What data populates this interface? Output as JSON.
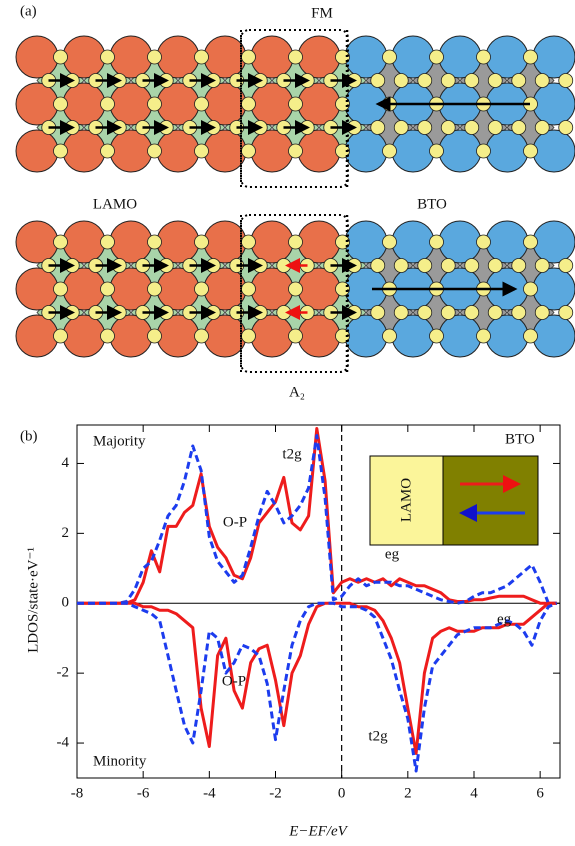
{
  "diagram": {
    "label": "(a)",
    "top_label": "FM",
    "left_label": "LAMO",
    "right_label": "BTO",
    "bottom_label": "A₂"
  },
  "chart_data": {
    "type": "line",
    "label": "(b)",
    "x_label": "E−EF/eV",
    "y_label": "LDOS/state·eV⁻¹",
    "annotations": [
      "Majority",
      "Minority",
      "t2g",
      "O-P",
      "eg",
      "BTO",
      "eg",
      "O-P",
      "t2g"
    ],
    "inset_label": "LAMO",
    "xlim": [
      -8,
      6.6
    ],
    "ylim": [
      -5,
      5.1
    ],
    "xticks": [
      -8,
      -6,
      -4,
      -2,
      0,
      2,
      4,
      6
    ],
    "yticks": [
      -4,
      -2,
      0,
      2,
      4
    ],
    "x": [
      -8,
      -7.75,
      -7.5,
      -7.25,
      -7,
      -6.75,
      -6.5,
      -6.25,
      -6,
      -5.75,
      -5.5,
      -5.25,
      -5,
      -4.75,
      -4.5,
      -4.25,
      -4,
      -3.75,
      -3.5,
      -3.25,
      -3,
      -2.75,
      -2.5,
      -2.25,
      -2,
      -1.75,
      -1.5,
      -1.25,
      -1,
      -0.75,
      -0.5,
      -0.25,
      0,
      0.25,
      0.5,
      0.75,
      1,
      1.25,
      1.5,
      1.75,
      2,
      2.25,
      2.5,
      2.75,
      3,
      3.25,
      3.5,
      3.75,
      4,
      4.25,
      4.5,
      4.75,
      5,
      5.25,
      5.5,
      5.75,
      6,
      6.25,
      6.5
    ],
    "series": [
      {
        "color": "#ee1c1c",
        "dash": false,
        "values": [
          0,
          0,
          0,
          0,
          0,
          0,
          0,
          0.1,
          0.6,
          1.5,
          0.9,
          2.2,
          2.2,
          2.6,
          2.8,
          3.7,
          2.2,
          1.6,
          1.3,
          0.8,
          0.7,
          1.3,
          2.3,
          2.6,
          2.9,
          3.6,
          2.3,
          2.1,
          2.5,
          5.0,
          3.5,
          0.3,
          0.6,
          0.7,
          0.6,
          0.7,
          0.6,
          0.7,
          0.5,
          0.7,
          0.6,
          0.5,
          0.5,
          0.4,
          0.3,
          0.1,
          0.05,
          0.05,
          0.1,
          0.1,
          0.15,
          0.2,
          0.2,
          0.2,
          0.2,
          0.1,
          0,
          0,
          0
        ]
      },
      {
        "color": "#1c3cee",
        "dash": true,
        "values": [
          0,
          0,
          0,
          0,
          0,
          0,
          0.05,
          0.4,
          1.0,
          1.2,
          1.8,
          2.5,
          2.8,
          3.5,
          4.5,
          3.8,
          1.9,
          1.2,
          0.9,
          0.6,
          0.8,
          1.6,
          2.5,
          3.2,
          2.8,
          2.3,
          2.5,
          2.8,
          3.3,
          4.8,
          3.0,
          0.1,
          0.2,
          0.5,
          0.7,
          0.5,
          0.6,
          0.6,
          0.6,
          0.5,
          0.5,
          0.4,
          0.3,
          0.2,
          0.1,
          0.05,
          0,
          0.05,
          0.2,
          0.3,
          0.3,
          0.4,
          0.5,
          0.7,
          0.9,
          1.1,
          0.6,
          0,
          0
        ]
      },
      {
        "color": "#ee1c1c",
        "dash": false,
        "values": [
          0,
          0,
          0,
          0,
          0,
          0,
          0,
          0,
          -0.1,
          -0.1,
          -0.2,
          -0.2,
          -0.3,
          -0.5,
          -0.7,
          -3.0,
          -4.1,
          -1.5,
          -1.0,
          -2.5,
          -3.0,
          -1.7,
          -1.3,
          -1.2,
          -2.2,
          -3.5,
          -2.0,
          -1.5,
          -0.6,
          -0.1,
          0,
          0,
          0,
          0,
          -0.1,
          -0.1,
          -0.2,
          -0.5,
          -1.0,
          -1.7,
          -3.0,
          -4.3,
          -2.0,
          -1.0,
          -0.8,
          -0.7,
          -0.8,
          -0.8,
          -0.8,
          -0.7,
          -0.7,
          -0.7,
          -0.6,
          -0.6,
          -0.6,
          -0.4,
          -0.2,
          0,
          0
        ]
      },
      {
        "color": "#1c3cee",
        "dash": true,
        "values": [
          0,
          0,
          0,
          0,
          0,
          0,
          0,
          -0.1,
          -0.2,
          -0.3,
          -0.5,
          -1.5,
          -2.5,
          -3.5,
          -4.0,
          -2.5,
          -0.8,
          -1.0,
          -2.0,
          -1.7,
          -1.2,
          -1.3,
          -1.5,
          -2.3,
          -3.9,
          -2.5,
          -1.2,
          -0.5,
          -0.1,
          0,
          0,
          0,
          -0.1,
          -0.1,
          -0.1,
          -0.2,
          -0.4,
          -1.0,
          -1.6,
          -2.5,
          -3.3,
          -4.8,
          -3.0,
          -1.8,
          -1.5,
          -1.2,
          -0.9,
          -0.8,
          -0.7,
          -0.7,
          -0.7,
          -0.6,
          -0.5,
          -0.6,
          -0.8,
          -1.2,
          -0.5,
          -0.1,
          0
        ]
      }
    ]
  }
}
